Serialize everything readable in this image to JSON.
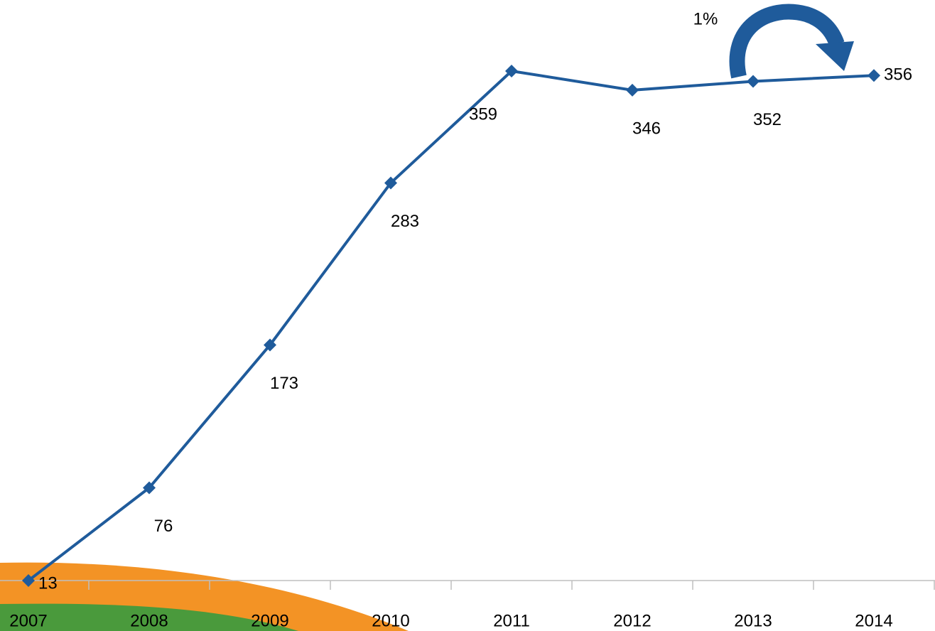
{
  "chart_data": {
    "type": "line",
    "categories": [
      "2007",
      "2008",
      "2009",
      "2010",
      "2011",
      "2012",
      "2013",
      "2014"
    ],
    "series": [
      {
        "name": null,
        "color": "#1f5b9b",
        "values": [
          13,
          76,
          173,
          283,
          359,
          346,
          352,
          356
        ]
      }
    ],
    "ylim": [
      0,
      400
    ],
    "annotations": [
      "1%"
    ]
  }
}
